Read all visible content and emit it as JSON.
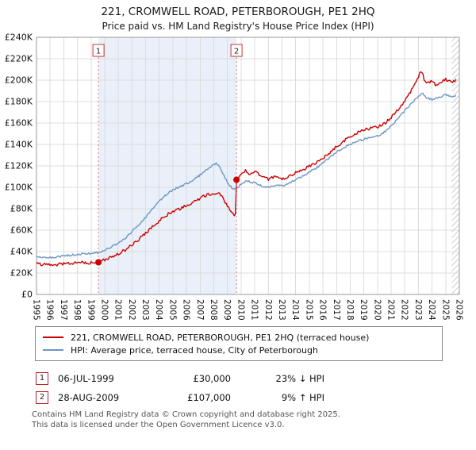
{
  "title": "221, CROMWELL ROAD, PETERBOROUGH, PE1 2HQ",
  "subtitle": "Price paid vs. HM Land Registry's House Price Index (HPI)",
  "chart_data": {
    "type": "line",
    "xlim": [
      1995,
      2026
    ],
    "ylim": [
      0,
      240000
    ],
    "x_ticks": [
      1995,
      1996,
      1997,
      1998,
      1999,
      2000,
      2001,
      2002,
      2003,
      2004,
      2005,
      2006,
      2007,
      2008,
      2009,
      2010,
      2011,
      2012,
      2013,
      2014,
      2015,
      2016,
      2017,
      2018,
      2019,
      2020,
      2021,
      2022,
      2023,
      2024,
      2025,
      2026
    ],
    "y_ticks": [
      {
        "value": 0,
        "label": "£0"
      },
      {
        "value": 20000,
        "label": "£20K"
      },
      {
        "value": 40000,
        "label": "£40K"
      },
      {
        "value": 60000,
        "label": "£60K"
      },
      {
        "value": 80000,
        "label": "£80K"
      },
      {
        "value": 100000,
        "label": "£100K"
      },
      {
        "value": 120000,
        "label": "£120K"
      },
      {
        "value": 140000,
        "label": "£140K"
      },
      {
        "value": 160000,
        "label": "£160K"
      },
      {
        "value": 180000,
        "label": "£180K"
      },
      {
        "value": 200000,
        "label": "£200K"
      },
      {
        "value": 220000,
        "label": "£220K"
      },
      {
        "value": 240000,
        "label": "£240K"
      }
    ],
    "grid_color": "#dcdcdc",
    "frame_color": "#9a9a9a",
    "shaded_region": {
      "from": 1999.54,
      "to": 2009.66,
      "color": "#e9f0f9"
    },
    "future_region_from": 2025.45,
    "sale_line_color": "#dd7777",
    "series": [
      {
        "name": "221, CROMWELL ROAD, PETERBOROUGH, PE1 2HQ (terraced house)",
        "color": "#cc0000",
        "points": [
          [
            1995.0,
            28500
          ],
          [
            1995.5,
            28000
          ],
          [
            1996.0,
            28300
          ],
          [
            1996.5,
            27900
          ],
          [
            1997.0,
            28800
          ],
          [
            1997.5,
            29200
          ],
          [
            1998.0,
            29600
          ],
          [
            1998.5,
            29900
          ],
          [
            1999.0,
            29600
          ],
          [
            1999.54,
            30000
          ],
          [
            2000.0,
            32500
          ],
          [
            2000.5,
            34800
          ],
          [
            2001.0,
            37800
          ],
          [
            2001.5,
            41500
          ],
          [
            2002.0,
            46000
          ],
          [
            2002.5,
            51500
          ],
          [
            2003.0,
            57000
          ],
          [
            2003.5,
            63000
          ],
          [
            2004.0,
            69000
          ],
          [
            2004.5,
            74000
          ],
          [
            2005.0,
            77500
          ],
          [
            2005.5,
            80000
          ],
          [
            2006.0,
            83000
          ],
          [
            2006.5,
            86500
          ],
          [
            2007.0,
            90000
          ],
          [
            2007.5,
            93000
          ],
          [
            2008.0,
            94500
          ],
          [
            2008.3,
            95000
          ],
          [
            2008.7,
            89500
          ],
          [
            2009.0,
            82000
          ],
          [
            2009.3,
            76500
          ],
          [
            2009.55,
            74000
          ],
          [
            2009.63,
            74500
          ],
          [
            2009.66,
            107000
          ],
          [
            2010.0,
            112500
          ],
          [
            2010.3,
            115500
          ],
          [
            2010.6,
            113000
          ],
          [
            2011.0,
            114500
          ],
          [
            2011.5,
            110500
          ],
          [
            2012.0,
            107500
          ],
          [
            2012.5,
            110000
          ],
          [
            2013.0,
            107000
          ],
          [
            2013.5,
            110500
          ],
          [
            2014.0,
            113500
          ],
          [
            2014.5,
            116500
          ],
          [
            2015.0,
            119500
          ],
          [
            2015.5,
            123000
          ],
          [
            2016.0,
            127500
          ],
          [
            2016.5,
            132500
          ],
          [
            2017.0,
            138000
          ],
          [
            2017.5,
            143000
          ],
          [
            2018.0,
            147000
          ],
          [
            2018.5,
            151000
          ],
          [
            2019.0,
            153500
          ],
          [
            2019.5,
            155500
          ],
          [
            2020.0,
            156500
          ],
          [
            2020.5,
            159500
          ],
          [
            2021.0,
            165000
          ],
          [
            2021.5,
            172000
          ],
          [
            2022.0,
            180000
          ],
          [
            2022.5,
            190500
          ],
          [
            2023.0,
            203000
          ],
          [
            2023.2,
            210000
          ],
          [
            2023.45,
            200000
          ],
          [
            2023.7,
            197000
          ],
          [
            2024.0,
            200000
          ],
          [
            2024.3,
            194500
          ],
          [
            2024.6,
            197500
          ],
          [
            2025.0,
            201000
          ],
          [
            2025.4,
            197500
          ],
          [
            2025.8,
            200000
          ]
        ]
      },
      {
        "name": "HPI: Average price, terraced house, City of Peterborough",
        "color": "#6e96c4",
        "points": [
          [
            1995.0,
            35500
          ],
          [
            1995.5,
            34800
          ],
          [
            1996.0,
            34500
          ],
          [
            1996.5,
            35200
          ],
          [
            1997.0,
            36000
          ],
          [
            1997.5,
            36800
          ],
          [
            1998.0,
            37400
          ],
          [
            1998.5,
            38000
          ],
          [
            1999.0,
            38400
          ],
          [
            1999.54,
            39000
          ],
          [
            2000.0,
            41500
          ],
          [
            2000.5,
            44200
          ],
          [
            2001.0,
            47800
          ],
          [
            2001.5,
            52500
          ],
          [
            2002.0,
            58500
          ],
          [
            2002.5,
            65000
          ],
          [
            2003.0,
            72000
          ],
          [
            2003.5,
            79500
          ],
          [
            2004.0,
            87000
          ],
          [
            2004.5,
            93000
          ],
          [
            2005.0,
            97500
          ],
          [
            2005.5,
            100500
          ],
          [
            2006.0,
            103500
          ],
          [
            2006.5,
            107000
          ],
          [
            2007.0,
            111500
          ],
          [
            2007.5,
            116500
          ],
          [
            2008.0,
            121000
          ],
          [
            2008.2,
            122500
          ],
          [
            2008.5,
            117500
          ],
          [
            2008.8,
            109500
          ],
          [
            2009.1,
            102000
          ],
          [
            2009.4,
            99000
          ],
          [
            2009.66,
            98000
          ],
          [
            2010.0,
            103500
          ],
          [
            2010.4,
            106000
          ],
          [
            2010.8,
            104500
          ],
          [
            2011.0,
            104000
          ],
          [
            2011.5,
            101500
          ],
          [
            2012.0,
            100000
          ],
          [
            2012.5,
            101500
          ],
          [
            2013.0,
            101500
          ],
          [
            2013.5,
            103500
          ],
          [
            2014.0,
            107000
          ],
          [
            2014.5,
            110500
          ],
          [
            2015.0,
            114000
          ],
          [
            2015.5,
            118000
          ],
          [
            2016.0,
            122500
          ],
          [
            2016.5,
            128000
          ],
          [
            2017.0,
            133000
          ],
          [
            2017.5,
            137000
          ],
          [
            2018.0,
            140000
          ],
          [
            2018.5,
            143000
          ],
          [
            2019.0,
            145000
          ],
          [
            2019.5,
            146500
          ],
          [
            2020.0,
            148000
          ],
          [
            2020.5,
            151500
          ],
          [
            2021.0,
            157500
          ],
          [
            2021.5,
            164000
          ],
          [
            2022.0,
            171500
          ],
          [
            2022.5,
            178500
          ],
          [
            2023.0,
            184500
          ],
          [
            2023.3,
            188000
          ],
          [
            2023.6,
            183500
          ],
          [
            2024.0,
            182000
          ],
          [
            2024.5,
            184000
          ],
          [
            2025.0,
            186500
          ],
          [
            2025.4,
            184000
          ],
          [
            2025.8,
            185500
          ]
        ]
      }
    ],
    "sales": [
      {
        "number": "1",
        "x": 1999.54,
        "price_value": 30000,
        "date": "06-JUL-1999",
        "price": "£30,000",
        "vs_hpi": "23% ↓ HPI"
      },
      {
        "number": "2",
        "x": 2009.66,
        "price_value": 107000,
        "date": "28-AUG-2009",
        "price": "£107,000",
        "vs_hpi": "9% ↑ HPI"
      }
    ]
  },
  "footer": {
    "line1": "Contains HM Land Registry data © Crown copyright and database right 2025.",
    "line2": "This data is licensed under the Open Government Licence v3.0."
  }
}
